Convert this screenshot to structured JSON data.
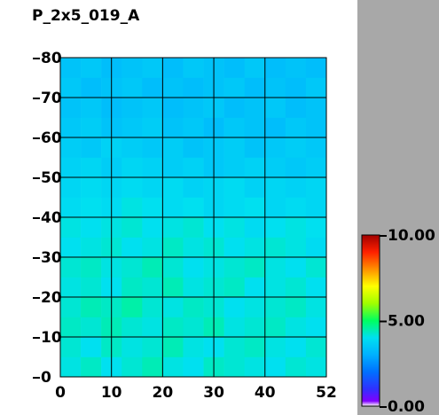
{
  "chart_data": {
    "type": "heatmap",
    "title": "P_2x5_019_A",
    "xbins": [
      0,
      4,
      8,
      12,
      16,
      20,
      24,
      28,
      32,
      36,
      40,
      44,
      48,
      52
    ],
    "ybins": [
      0,
      5,
      10,
      15,
      20,
      25,
      30,
      35,
      40,
      45,
      50,
      55,
      60,
      65,
      70,
      75,
      80
    ],
    "z": [
      [
        4.1,
        4.3,
        4.0,
        4.2,
        4.4,
        4.1,
        4.0,
        4.3,
        4.2,
        4.1,
        4.0,
        4.2,
        4.1
      ],
      [
        4.2,
        4.0,
        4.3,
        4.1,
        4.2,
        4.4,
        4.1,
        4.0,
        4.2,
        4.3,
        4.1,
        4.0,
        4.2
      ],
      [
        4.3,
        4.2,
        4.4,
        4.2,
        4.1,
        4.3,
        4.2,
        4.4,
        4.1,
        4.2,
        4.3,
        4.1,
        4.0
      ],
      [
        4.2,
        4.4,
        4.3,
        4.5,
        4.2,
        4.1,
        4.3,
        4.2,
        4.0,
        4.1,
        4.2,
        4.3,
        4.1
      ],
      [
        4.1,
        4.2,
        4.0,
        4.3,
        4.2,
        4.4,
        4.1,
        4.2,
        4.3,
        4.0,
        4.1,
        4.2,
        4.0
      ],
      [
        4.2,
        4.3,
        4.1,
        4.2,
        4.4,
        4.2,
        4.0,
        4.1,
        4.2,
        4.3,
        4.1,
        4.0,
        4.2
      ],
      [
        4.0,
        4.1,
        4.2,
        4.0,
        4.1,
        4.3,
        4.1,
        4.2,
        4.0,
        4.1,
        4.2,
        4.1,
        3.9
      ],
      [
        4.1,
        4.0,
        4.1,
        4.2,
        4.0,
        4.1,
        4.2,
        4.0,
        4.1,
        3.9,
        4.0,
        4.1,
        4.0
      ],
      [
        3.9,
        4.0,
        3.9,
        4.1,
        4.0,
        3.9,
        4.0,
        3.8,
        3.9,
        4.0,
        3.8,
        3.9,
        3.8
      ],
      [
        3.8,
        3.9,
        3.8,
        3.9,
        3.8,
        3.9,
        3.7,
        3.8,
        3.9,
        3.7,
        3.8,
        3.7,
        3.8
      ],
      [
        3.7,
        3.8,
        3.6,
        3.8,
        3.7,
        3.6,
        3.7,
        3.5,
        3.6,
        3.7,
        3.6,
        3.5,
        3.6
      ],
      [
        3.6,
        3.5,
        3.7,
        3.6,
        3.5,
        3.6,
        3.4,
        3.5,
        3.6,
        3.4,
        3.5,
        3.6,
        3.5
      ],
      [
        3.5,
        3.6,
        3.4,
        3.5,
        3.6,
        3.4,
        3.5,
        3.3,
        3.5,
        3.4,
        3.3,
        3.5,
        3.4
      ],
      [
        3.4,
        3.5,
        3.3,
        3.4,
        3.5,
        3.3,
        3.4,
        3.5,
        3.3,
        3.4,
        3.5,
        3.3,
        3.4
      ],
      [
        3.5,
        3.3,
        3.4,
        3.5,
        3.3,
        3.4,
        3.3,
        3.4,
        3.5,
        3.3,
        3.4,
        3.3,
        3.5
      ],
      [
        3.4,
        3.5,
        3.3,
        3.4,
        3.5,
        3.3,
        3.5,
        3.4,
        3.3,
        3.5,
        3.3,
        3.4,
        3.3
      ]
    ],
    "xlim": [
      0,
      52
    ],
    "xticks": [
      0,
      10,
      20,
      30,
      40,
      52
    ],
    "ylim": [
      0,
      80
    ],
    "yticks": [
      0,
      10,
      20,
      30,
      40,
      50,
      60,
      70,
      80
    ],
    "grid": true,
    "colorscale": [
      [
        0,
        "#ffffff"
      ],
      [
        0.3,
        "#8000ff"
      ],
      [
        1,
        "#3030ff"
      ],
      [
        2,
        "#0070ff"
      ],
      [
        3,
        "#00b0ff"
      ],
      [
        4,
        "#00e0f0"
      ],
      [
        5,
        "#00ff60"
      ],
      [
        6,
        "#a0ff00"
      ],
      [
        7,
        "#ffff00"
      ],
      [
        8,
        "#ff9000"
      ],
      [
        9,
        "#ff2000"
      ],
      [
        10,
        "#a00000"
      ]
    ],
    "colorbar_lim": [
      0,
      10
    ],
    "colorbar_ticks": [
      {
        "value": 0,
        "label": "0.00"
      },
      {
        "value": 5,
        "label": "5.00"
      },
      {
        "value": 10,
        "label": "10.00"
      }
    ]
  }
}
